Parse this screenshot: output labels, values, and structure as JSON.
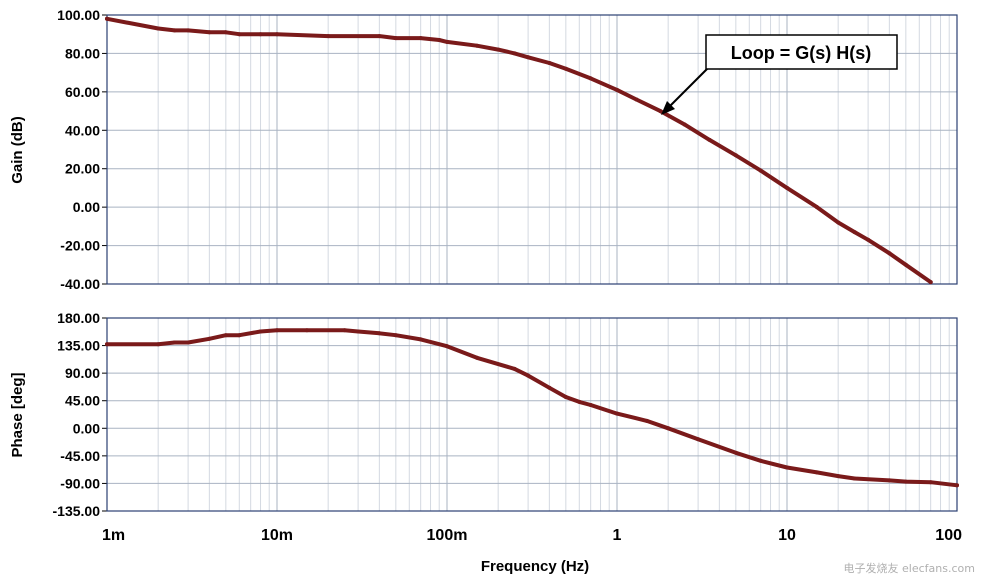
{
  "colors": {
    "curve": "#7a1a1a",
    "grid_major": "#a9b3c2",
    "grid_minor": "#d4d9e1",
    "frame": "#2b3f73",
    "background": "#ffffff"
  },
  "watermark": {
    "text": "电子发烧友  elecfans.com"
  },
  "chart_data": [
    {
      "type": "line",
      "name": "gain",
      "xscale": "log",
      "xlim": [
        0.001,
        100
      ],
      "ylim": [
        -40,
        100
      ],
      "ylabel": "Gain (dB)",
      "yticks": [
        100,
        80,
        60,
        40,
        20,
        0,
        -20,
        -40
      ],
      "ytick_labels": [
        "100.00",
        "80.00",
        "60.00",
        "40.00",
        "20.00",
        "0.00",
        "-20.00",
        "-40.00"
      ],
      "grid": true,
      "series": [
        {
          "name": "Loop",
          "x": [
            0.001,
            0.002,
            0.0025,
            0.003,
            0.004,
            0.005,
            0.006,
            0.008,
            0.01,
            0.02,
            0.04,
            0.05,
            0.07,
            0.09,
            0.1,
            0.15,
            0.2,
            0.25,
            0.3,
            0.4,
            0.5,
            0.7,
            1,
            1.3,
            1.8,
            2.5,
            3.5,
            5,
            7,
            10,
            15,
            20,
            25,
            30,
            40,
            50,
            70
          ],
          "y": [
            98,
            93,
            92,
            92,
            91,
            91,
            90,
            90,
            90,
            89,
            89,
            88,
            88,
            87,
            86,
            84,
            82,
            80,
            78,
            75,
            72,
            67,
            61,
            56,
            50,
            43,
            35,
            27,
            19,
            10,
            0,
            -8,
            -13,
            -17,
            -24,
            -30,
            -39
          ]
        }
      ],
      "annotations": [
        {
          "text": "Loop = G(s) H(s)",
          "points_to": [
            1.8,
            49
          ]
        }
      ]
    },
    {
      "type": "line",
      "name": "phase",
      "xscale": "log",
      "xlim": [
        0.001,
        100
      ],
      "ylim": [
        -135,
        180
      ],
      "ylabel": "Phase [deg]",
      "yticks": [
        180,
        135,
        90,
        45,
        0,
        -45,
        -90,
        -135
      ],
      "ytick_labels": [
        "180.00",
        "135.00",
        "90.00",
        "45.00",
        "0.00",
        "-45.00",
        "-90.00",
        "-135.00"
      ],
      "xticks": [
        0.001,
        0.01,
        0.1,
        1,
        10,
        100
      ],
      "xtick_labels": [
        "1m",
        "10m",
        "100m",
        "1",
        "10",
        "100"
      ],
      "xlabel": "Frequency (Hz)",
      "grid": true,
      "series": [
        {
          "name": "Loop",
          "x": [
            0.001,
            0.002,
            0.0025,
            0.003,
            0.004,
            0.005,
            0.006,
            0.008,
            0.01,
            0.015,
            0.025,
            0.03,
            0.04,
            0.05,
            0.07,
            0.1,
            0.15,
            0.25,
            0.3,
            0.4,
            0.5,
            0.6,
            0.7,
            1,
            1.5,
            2,
            3,
            5,
            7,
            10,
            15,
            20,
            25,
            40,
            50,
            70,
            100
          ],
          "y": [
            137,
            137,
            140,
            140,
            146,
            152,
            152,
            158,
            160,
            160,
            160,
            158,
            155,
            152,
            145,
            134,
            115,
            97,
            86,
            66,
            51,
            43,
            38,
            24,
            12,
            0,
            -18,
            -40,
            -53,
            -64,
            -72,
            -78,
            -82,
            -85,
            -87,
            -88,
            -93
          ]
        }
      ]
    }
  ]
}
